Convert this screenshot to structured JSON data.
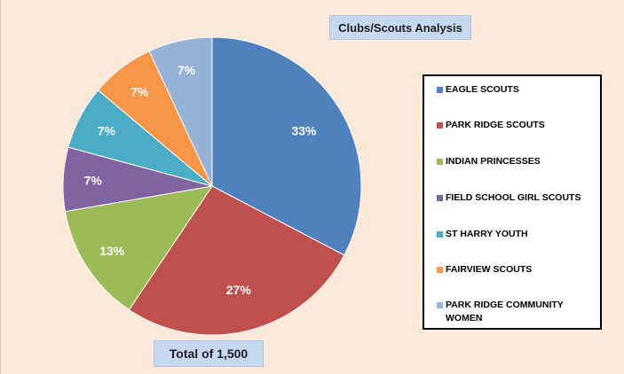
{
  "chart_data": {
    "type": "pie",
    "title": "Clubs/Scouts Analysis",
    "annotation": "Total of 1,500",
    "legend_position": "right",
    "slices": [
      {
        "name": "EAGLE SCOUTS",
        "value": 33,
        "label": "33%",
        "color": "#4f81bd"
      },
      {
        "name": "PARK RIDGE SCOUTS",
        "value": 27,
        "label": "27%",
        "color": "#c0504d"
      },
      {
        "name": "INDIAN PRINCESSES",
        "value": 13,
        "label": "13%",
        "color": "#9bbb59"
      },
      {
        "name": "FIELD SCHOOL GIRL SCOUTS",
        "value": 7,
        "label": "7%",
        "color": "#8064a2"
      },
      {
        "name": "ST HARRY YOUTH",
        "value": 7,
        "label": "7%",
        "color": "#4bacc6"
      },
      {
        "name": "FAIRVIEW SCOUTS",
        "value": 7,
        "label": "7%",
        "color": "#f79646"
      },
      {
        "name": "PARK RIDGE COMMUNITY WOMEN",
        "value": 7,
        "label": "7%",
        "color": "#95b3d7"
      }
    ]
  }
}
